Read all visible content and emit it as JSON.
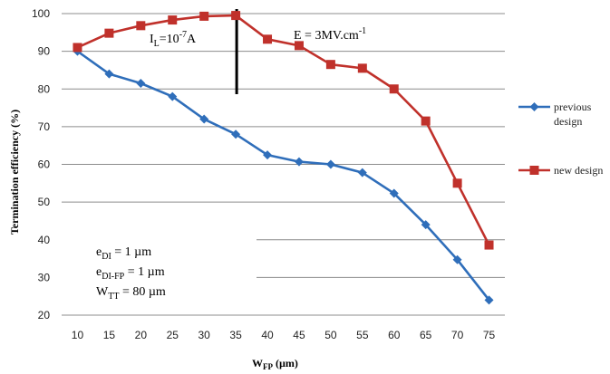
{
  "chart_data": {
    "type": "line",
    "xlabel_main": "W",
    "xlabel_sub": "FP",
    "xlabel_unit": " (µm)",
    "ylabel": "Termination efficiency (%)",
    "ylim": [
      20,
      100
    ],
    "yticks": [
      20,
      30,
      40,
      50,
      60,
      70,
      80,
      90,
      100
    ],
    "x": [
      10,
      15,
      20,
      25,
      30,
      35,
      40,
      45,
      50,
      55,
      60,
      65,
      70,
      75
    ],
    "grid": true,
    "legend_position": "right",
    "series": [
      {
        "name": "previous design",
        "name_lines": [
          "previous",
          "design"
        ],
        "color": "#2F6EBA",
        "marker": "diamond",
        "values": [
          90,
          84,
          81.5,
          78,
          72,
          68,
          62.5,
          60.7,
          60,
          57.8,
          52.3,
          44,
          34.7,
          24
        ]
      },
      {
        "name": "new design",
        "name_lines": [
          "new design"
        ],
        "color": "#C0312B",
        "marker": "square",
        "values": [
          91,
          94.8,
          96.8,
          98.3,
          99.3,
          99.5,
          93.2,
          91.5,
          86.5,
          85.5,
          80,
          71.5,
          55,
          38.6
        ]
      }
    ],
    "annotations": {
      "il": {
        "main": "I",
        "sub": "L",
        "mid": "=10",
        "sup": "-7",
        "end": "A"
      },
      "e_field": {
        "main": "E = 3MV.cm",
        "sup": "-1"
      },
      "edi": {
        "main": "e",
        "sub": "DI",
        "end": " = 1 µm"
      },
      "edifp": {
        "main": "e",
        "sub": "DI-FP",
        "end": " = 1 µm"
      },
      "wtt": {
        "main": "W",
        "sub": "TT",
        "end": " = 80 µm"
      }
    }
  }
}
